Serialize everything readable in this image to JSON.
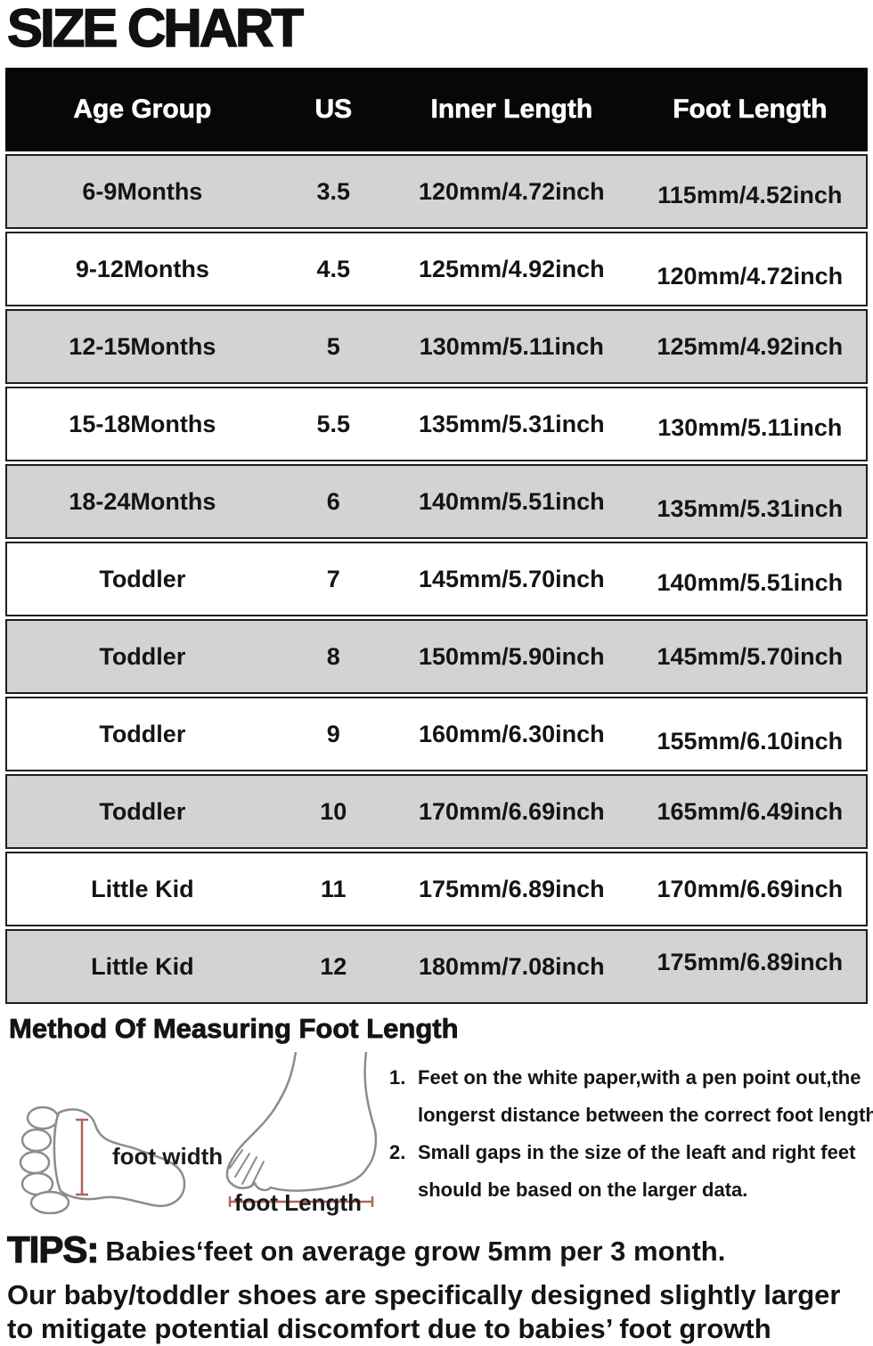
{
  "title": "SIZE CHART",
  "table": {
    "headers": [
      "Age Group",
      "US",
      "Inner Length",
      "Foot Length"
    ],
    "rows": [
      [
        "6-9Months",
        "3.5",
        "120mm/4.72inch",
        "115mm/4.52inch"
      ],
      [
        "9-12Months",
        "4.5",
        "125mm/4.92inch",
        "120mm/4.72inch"
      ],
      [
        "12-15Months",
        "5",
        "130mm/5.11inch",
        "125mm/4.92inch"
      ],
      [
        "15-18Months",
        "5.5",
        "135mm/5.31inch",
        "130mm/5.11inch"
      ],
      [
        "18-24Months",
        "6",
        "140mm/5.51inch",
        "135mm/5.31inch"
      ],
      [
        "Toddler",
        "7",
        "145mm/5.70inch",
        "140mm/5.51inch"
      ],
      [
        "Toddler",
        "8",
        "150mm/5.90inch",
        "145mm/5.70inch"
      ],
      [
        "Toddler",
        "9",
        "160mm/6.30inch",
        "155mm/6.10inch"
      ],
      [
        "Toddler",
        "10",
        "170mm/6.69inch",
        "165mm/6.49inch"
      ],
      [
        "Little Kid",
        "11",
        "175mm/6.89inch",
        "170mm/6.69inch"
      ],
      [
        "Little Kid",
        "12",
        "180mm/7.08inch",
        "175mm/6.89inch"
      ]
    ]
  },
  "method": {
    "heading": "Method Of Measuring Foot Length",
    "foot_width_label": "foot width",
    "foot_length_label": "foot Length",
    "instructions": [
      {
        "num": "1.",
        "lines": [
          "Feet on the white paper,with a pen point out,the",
          "longerst distance between the correct foot length."
        ]
      },
      {
        "num": "2.",
        "lines": [
          "Small gaps in the size of the leaft and right feet",
          "should be based on the larger data."
        ]
      }
    ]
  },
  "tips": {
    "label": "TIPS:",
    "line1": "Babies‘feet on average grow 5mm per 3 month.",
    "line2": "Our baby/toddler shoes are specifically designed slightly larger",
    "line3": "to mitigate potential discomfort due to babies’ foot growth"
  },
  "colors": {
    "row_gray": "#d3d3d3",
    "row_white": "#ffffff",
    "header_bg": "#070707",
    "header_text": "#ffffff",
    "border": "#1e1e1e",
    "measure_line": "#b2635d",
    "foot_outline": "#8c8c8c"
  }
}
